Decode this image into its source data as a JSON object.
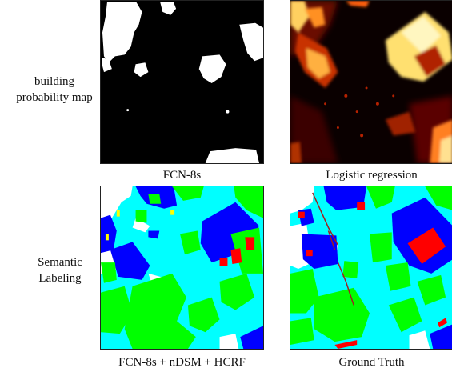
{
  "row_labels": {
    "top": [
      "building",
      "probability map"
    ],
    "bottom": [
      "Semantic",
      "Labeling"
    ]
  },
  "captions": {
    "fcn": "FCN-8s",
    "logistic": "Logistic regression",
    "fcn_ndsm_hcrf": "FCN-8s + nDSM + HCRF",
    "ground_truth": "Ground Truth"
  },
  "colors": {
    "impervious_surface": "#ffffff",
    "building": "#0000ff",
    "low_vegetation": "#00ffff",
    "tree": "#00ff00",
    "car": "#ffff00",
    "clutter": "#ff0000",
    "prob_low": "#000000",
    "prob_high": "#ffffff"
  }
}
